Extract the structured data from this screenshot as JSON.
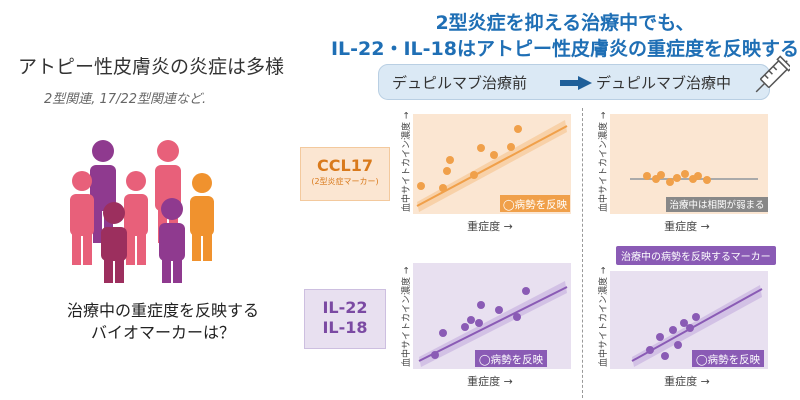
{
  "left": {
    "title": "アトピー性皮膚炎の炎症は多様",
    "subtitle": "2型関連, 17/22型関連など.",
    "question_line1": "治療中の重症度を反映する",
    "question_line2": "バイオマーカーは？"
  },
  "header": {
    "line1": "2型炎症を抑える治療中でも、",
    "line2": "IL-22・IL-18はアトピー性皮膚炎の重症度を反映する"
  },
  "phases": {
    "before": "デュピルマブ治療前",
    "during": "デュピルマブ治療中"
  },
  "rows": {
    "ccl17": {
      "label": "CCL17",
      "sublabel": "(2型炎症マーカー)"
    },
    "il": {
      "label_line1": "IL-22",
      "label_line2": "IL-18"
    }
  },
  "axis": {
    "y": "血中サイトカイン濃度 →",
    "x": "重症度 →"
  },
  "badges": {
    "reflects": "◯病勢を反映",
    "weak": "治療中は相関が弱まる",
    "marker": "治療中の病勢を反映するマーカー"
  },
  "colors": {
    "orange": "#f0a04a",
    "purple": "#8a5bb5",
    "blue": "#1f6fb5"
  },
  "icons": [
    "person-group-icon",
    "arrow-right-icon",
    "syringe-icon"
  ]
}
